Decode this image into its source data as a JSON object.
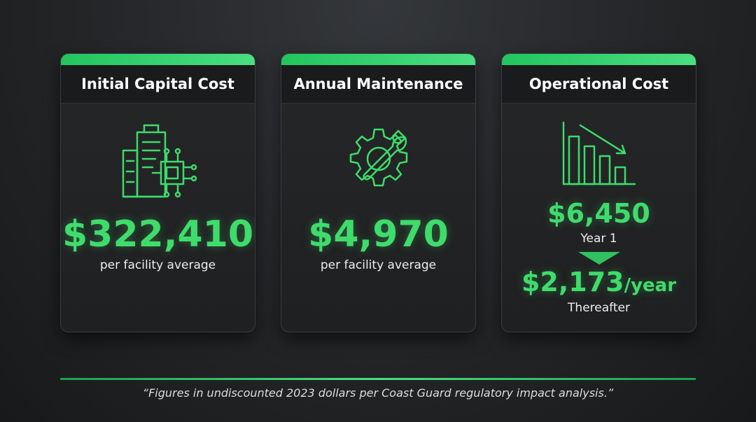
{
  "cards": [
    {
      "title": "Initial Capital Cost",
      "value": "$322,410",
      "caption": "per facility average"
    },
    {
      "title": "Annual Maintenance",
      "value": "$4,970",
      "caption": "per facility average"
    },
    {
      "title": "Operational Cost",
      "first_value": "$6,450",
      "first_caption": "Year 1",
      "second_value": "$2,173",
      "second_unit": "/year",
      "second_caption": "Thereafter"
    }
  ],
  "footnote": "“Figures in undiscounted 2023 dollars per Coast Guard regulatory impact analysis.”"
}
